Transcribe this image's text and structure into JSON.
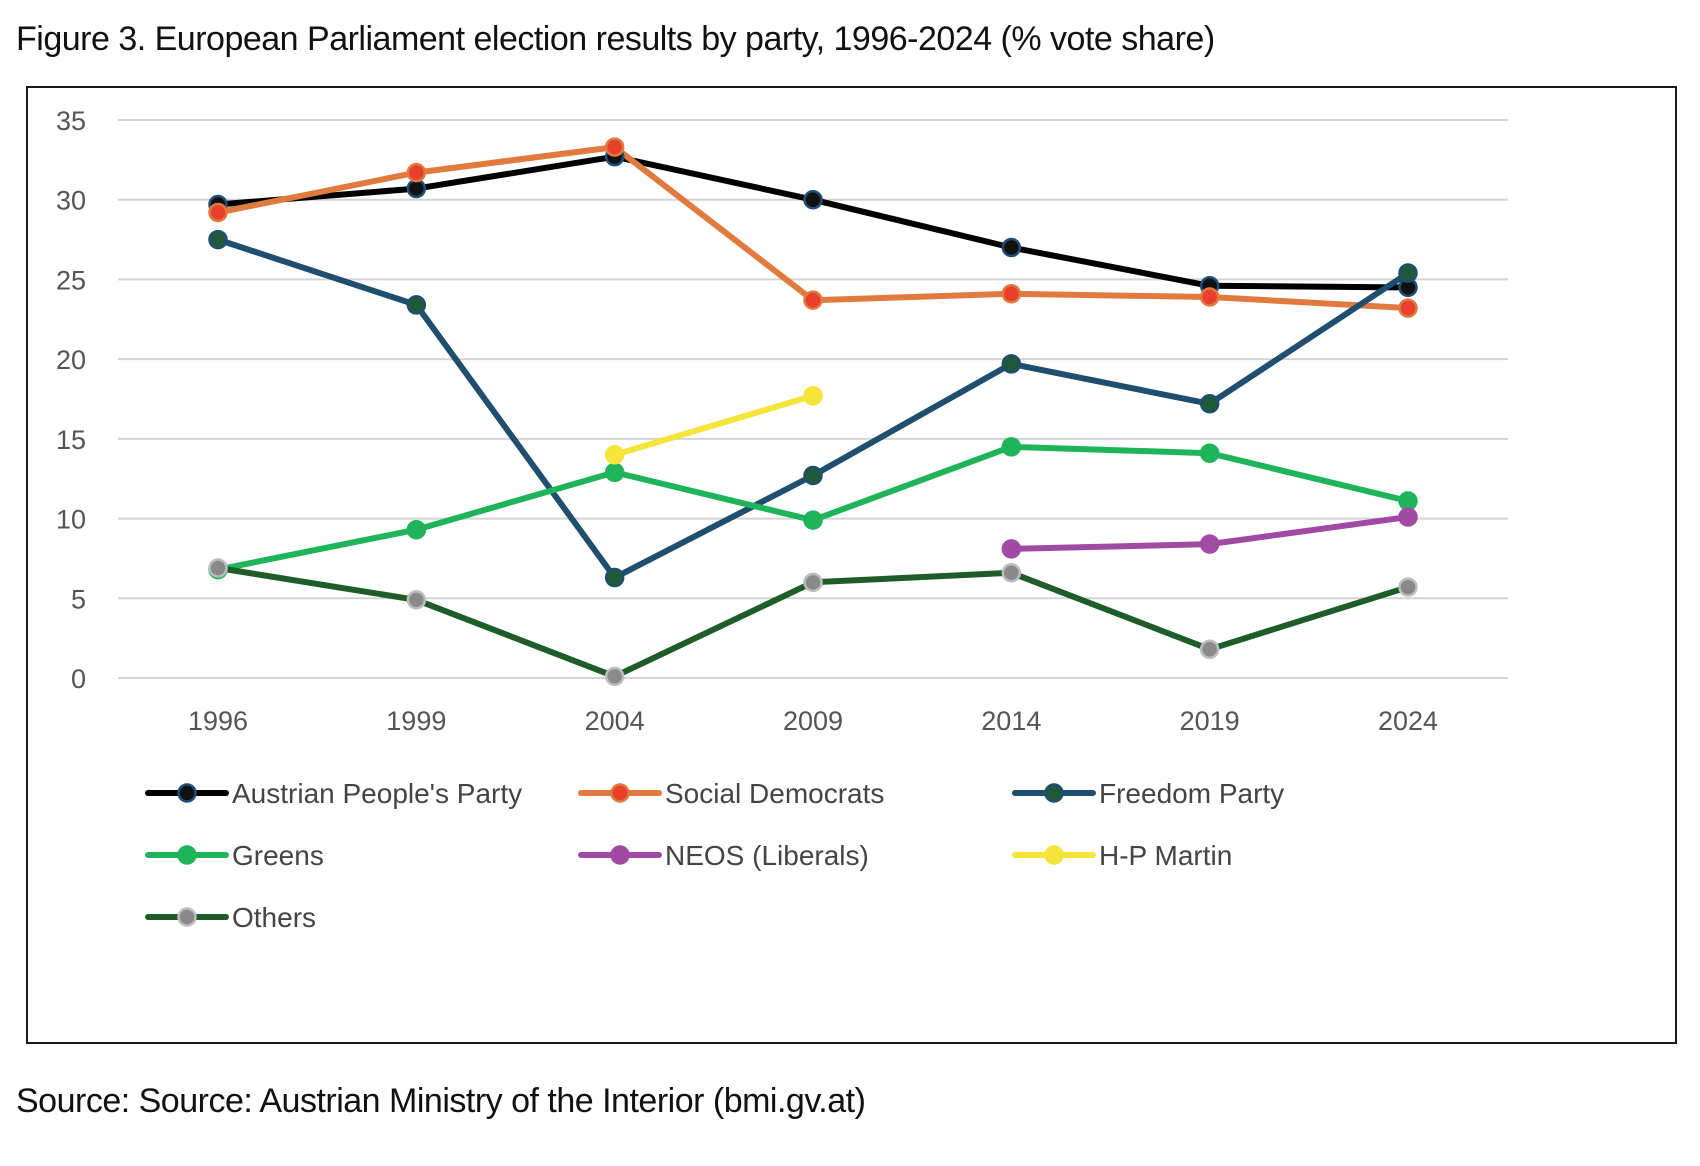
{
  "figure": {
    "title": "Figure 3. European Parliament election results by party, 1996-2024 (% vote share)",
    "source": "Source: Source: Austrian Ministry of the Interior (bmi.gv.at)"
  },
  "chart_data": {
    "type": "line",
    "x": [
      "1996",
      "1999",
      "2004",
      "2009",
      "2014",
      "2019",
      "2024"
    ],
    "ylim": [
      0,
      35
    ],
    "yticks": [
      "0",
      "5",
      "10",
      "15",
      "20",
      "25",
      "30",
      "35"
    ],
    "grid": true,
    "legend_position": "bottom",
    "series": [
      {
        "name": "Austrian People's Party",
        "color": "#000000",
        "marker": "#111111",
        "marker_edge": "#1f4e79",
        "values": [
          29.7,
          30.7,
          32.7,
          30.0,
          27.0,
          24.6,
          24.5
        ]
      },
      {
        "name": "Social Democrats",
        "color": "#e07a3f",
        "marker": "#e8402a",
        "marker_edge": "#e07a3f",
        "values": [
          29.2,
          31.7,
          33.3,
          23.7,
          24.1,
          23.9,
          23.2
        ]
      },
      {
        "name": "Freedom Party",
        "color": "#1f4e6e",
        "marker": "#1e5a3a",
        "marker_edge": "#1f4e6e",
        "values": [
          27.5,
          23.4,
          6.3,
          12.7,
          19.7,
          17.2,
          25.4
        ]
      },
      {
        "name": "Greens",
        "color": "#1fb35a",
        "marker": "#1fb35a",
        "marker_edge": "#1fb35a",
        "values": [
          6.8,
          9.3,
          12.9,
          9.9,
          14.5,
          14.1,
          11.1
        ]
      },
      {
        "name": "NEOS (Liberals)",
        "color": "#a04aa3",
        "marker": "#a04aa3",
        "marker_edge": "#a04aa3",
        "values": [
          null,
          null,
          null,
          null,
          8.1,
          8.4,
          10.1
        ]
      },
      {
        "name": "H-P Martin",
        "color": "#f5e43a",
        "marker": "#f5e43a",
        "marker_edge": "#f5e43a",
        "values": [
          null,
          null,
          14.0,
          17.7,
          null,
          null,
          null
        ]
      },
      {
        "name": "Others",
        "color": "#1e5c2a",
        "marker": "#8a8a8a",
        "marker_edge": "#bdbdbd",
        "values": [
          6.9,
          4.9,
          0.1,
          6.0,
          6.6,
          1.8,
          5.7
        ]
      }
    ]
  }
}
